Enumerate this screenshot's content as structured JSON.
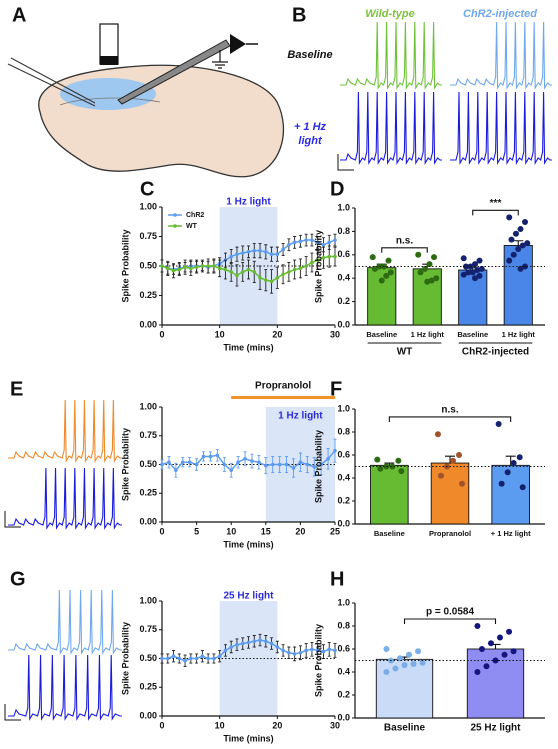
{
  "panel_labels": [
    "A",
    "B",
    "C",
    "D",
    "E",
    "F",
    "G",
    "H"
  ],
  "traces": {
    "wild_type": "Wild-type",
    "chr2": "ChR2-injected",
    "baseline": "Baseline",
    "light_lines": [
      "+ 1 Hz",
      "light"
    ]
  },
  "chart_data": [
    {
      "type": "line",
      "xlabel": "Time (mins)",
      "ylabel": "Spike Probability",
      "xlim": [
        0,
        30
      ],
      "xticks": [
        0,
        10,
        20,
        30
      ],
      "ylim": [
        0,
        1
      ],
      "yticks": [
        {
          "value": 0,
          "label": "0.00"
        },
        {
          "value": 0.25,
          "label": "0.25"
        },
        {
          "value": 0.5,
          "label": "0.50"
        },
        {
          "value": 0.75,
          "label": "0.75"
        },
        {
          "value": 1,
          "label": "1.00"
        }
      ],
      "reference_line": 0.5,
      "legend": "upper-left",
      "shaded": {
        "range": [
          10,
          20
        ],
        "label": "1 Hz light",
        "color": "#dae6f8",
        "label_color": "#2b2bd6"
      },
      "x": [
        0,
        1,
        2,
        3,
        4,
        5,
        6,
        7,
        8,
        9,
        10,
        11,
        12,
        13,
        14,
        15,
        16,
        17,
        18,
        19,
        20,
        21,
        22,
        23,
        24,
        25,
        26,
        27,
        28,
        29,
        30
      ],
      "series": [
        {
          "name": "ChR2",
          "color": "#5b9bf0",
          "error_color": "#222222",
          "values": [
            0.5,
            0.48,
            0.47,
            0.48,
            0.49,
            0.5,
            0.5,
            0.5,
            0.49,
            0.5,
            0.52,
            0.55,
            0.58,
            0.6,
            0.61,
            0.62,
            0.63,
            0.63,
            0.62,
            0.6,
            0.6,
            0.64,
            0.68,
            0.7,
            0.71,
            0.72,
            0.72,
            0.7,
            0.68,
            0.7,
            0.72
          ],
          "errors": [
            0.05,
            0.05,
            0.04,
            0.05,
            0.04,
            0.05,
            0.05,
            0.04,
            0.05,
            0.05,
            0.05,
            0.06,
            0.06,
            0.06,
            0.06,
            0.05,
            0.06,
            0.06,
            0.06,
            0.06,
            0.06,
            0.05,
            0.05,
            0.05,
            0.05,
            0.05,
            0.05,
            0.05,
            0.06,
            0.06,
            0.05
          ]
        },
        {
          "name": "WT",
          "color": "#66bb33",
          "error_color": "#222222",
          "values": [
            0.5,
            0.48,
            0.46,
            0.47,
            0.49,
            0.48,
            0.49,
            0.5,
            0.5,
            0.5,
            0.48,
            0.47,
            0.45,
            0.42,
            0.45,
            0.47,
            0.45,
            0.4,
            0.38,
            0.37,
            0.4,
            0.43,
            0.45,
            0.47,
            0.48,
            0.5,
            0.53,
            0.55,
            0.57,
            0.58,
            0.58
          ],
          "errors": [
            0.05,
            0.06,
            0.06,
            0.05,
            0.06,
            0.06,
            0.05,
            0.05,
            0.06,
            0.06,
            0.07,
            0.08,
            0.08,
            0.09,
            0.08,
            0.08,
            0.09,
            0.1,
            0.09,
            0.1,
            0.09,
            0.08,
            0.08,
            0.08,
            0.08,
            0.08,
            0.08,
            0.08,
            0.09,
            0.09,
            0.08
          ]
        }
      ]
    },
    {
      "type": "bar",
      "ylabel": "Spike Probability",
      "ylim": [
        0,
        1
      ],
      "yticks": [
        {
          "value": 0,
          "label": "0.0"
        },
        0.2,
        0.4,
        0.6,
        0.8,
        {
          "value": 1,
          "label": "1.0"
        }
      ],
      "reference_line": 0.5,
      "categories": [
        "Baseline",
        "1 Hz light",
        "Baseline",
        "1 Hz light"
      ],
      "groups": [
        "WT",
        "ChR2-injected"
      ],
      "values": [
        0.49,
        0.48,
        0.47,
        0.68
      ],
      "errors": [
        0.03,
        0.04,
        0.02,
        0.04
      ],
      "colors": [
        "#66bb33",
        "#66bb33",
        "#4a86e8",
        "#4a86e8"
      ],
      "point_colors": [
        "#2d6a12",
        "#2d6a12",
        "#14226e",
        "#14226e"
      ],
      "points": [
        [
          0.58,
          0.55,
          0.5,
          0.5,
          0.48,
          0.45,
          0.42,
          0.38
        ],
        [
          0.6,
          0.58,
          0.52,
          0.48,
          0.45,
          0.4,
          0.38,
          0.37
        ],
        [
          0.57,
          0.55,
          0.52,
          0.5,
          0.5,
          0.48,
          0.47,
          0.45,
          0.45,
          0.43,
          0.42,
          0.4
        ],
        [
          0.92,
          0.88,
          0.82,
          0.78,
          0.73,
          0.7,
          0.68,
          0.65,
          0.6,
          0.55,
          0.5,
          0.48
        ]
      ],
      "significance": [
        {
          "label": "n.s.",
          "between": [
            0,
            1
          ]
        },
        {
          "label": "***",
          "between": [
            2,
            3
          ]
        }
      ]
    },
    {
      "type": "line",
      "xlabel": "Time (mins)",
      "ylabel": "Spike Probability",
      "xlim": [
        0,
        25
      ],
      "xticks": [
        0,
        5,
        10,
        15,
        20,
        25
      ],
      "ylim": [
        0,
        1
      ],
      "yticks": [
        {
          "value": 0,
          "label": "0.00"
        },
        {
          "value": 0.25,
          "label": "0.25"
        },
        {
          "value": 0.5,
          "label": "0.50"
        },
        {
          "value": 0.75,
          "label": "0.75"
        },
        {
          "value": 1,
          "label": "1.00"
        }
      ],
      "reference_line": 0.5,
      "shaded": {
        "range": [
          15,
          25
        ],
        "label": "1 Hz light",
        "color": "#dae6f8",
        "label_color": "#2b2bd6"
      },
      "bar_annotation": {
        "label": "Propranolol",
        "range": [
          10,
          25
        ],
        "color": "#f0922a"
      },
      "x": [
        0,
        1,
        2,
        3,
        4,
        5,
        6,
        7,
        8,
        9,
        10,
        11,
        12,
        13,
        14,
        15,
        16,
        17,
        18,
        19,
        20,
        21,
        22,
        23,
        24,
        25
      ],
      "series": [
        {
          "name": null,
          "color": "#5b9bf0",
          "error_color": "#5b9bf0",
          "values": [
            0.5,
            0.52,
            0.45,
            0.52,
            0.52,
            0.5,
            0.57,
            0.57,
            0.58,
            0.5,
            0.45,
            0.52,
            0.55,
            0.53,
            0.52,
            0.49,
            0.5,
            0.5,
            0.5,
            0.47,
            0.52,
            0.5,
            0.48,
            0.5,
            0.55,
            0.62
          ],
          "errors": [
            0.04,
            0.05,
            0.06,
            0.04,
            0.04,
            0.05,
            0.04,
            0.04,
            0.05,
            0.06,
            0.06,
            0.05,
            0.06,
            0.06,
            0.06,
            0.07,
            0.07,
            0.07,
            0.07,
            0.08,
            0.08,
            0.07,
            0.08,
            0.09,
            0.09,
            0.1
          ]
        }
      ]
    },
    {
      "type": "bar",
      "ylabel": "Spike Probability",
      "ylim": [
        0,
        1
      ],
      "yticks": [
        {
          "value": 0,
          "label": "0.0"
        },
        0.2,
        0.4,
        0.6,
        0.8,
        {
          "value": 1,
          "label": "1.0"
        }
      ],
      "reference_line": 0.5,
      "categories": [
        "Baseline",
        "Propranolol",
        "+ 1 Hz light"
      ],
      "values": [
        0.51,
        0.53,
        0.51
      ],
      "errors": [
        0.02,
        0.06,
        0.08
      ],
      "colors": [
        "#66bb33",
        "#f0892a",
        "#5b9bf0"
      ],
      "point_colors": [
        "#2d6a12",
        "#a0522d",
        "#14226e"
      ],
      "points": [
        [
          0.56,
          0.55,
          0.5,
          0.5,
          0.48,
          0.46
        ],
        [
          0.78,
          0.6,
          0.55,
          0.5,
          0.42,
          0.35
        ],
        [
          0.87,
          0.58,
          0.53,
          0.45,
          0.35,
          0.32
        ]
      ],
      "significance": [
        {
          "label": "n.s.",
          "between": [
            0,
            2
          ]
        }
      ]
    },
    {
      "type": "line",
      "xlabel": "Time (mins)",
      "ylabel": "Spike Probability",
      "xlim": [
        0,
        30
      ],
      "xticks": [
        0,
        10,
        20,
        30
      ],
      "ylim": [
        0,
        1
      ],
      "yticks": [
        {
          "value": 0,
          "label": "0.00"
        },
        {
          "value": 0.25,
          "label": "0.25"
        },
        {
          "value": 0.5,
          "label": "0.50"
        },
        {
          "value": 0.75,
          "label": "0.75"
        },
        {
          "value": 1,
          "label": "1.00"
        }
      ],
      "reference_line": 0.5,
      "shaded": {
        "range": [
          10,
          20
        ],
        "label": "25 Hz light",
        "color": "#dae6f8",
        "label_color": "#2b2bd6"
      },
      "x": [
        0,
        1,
        2,
        3,
        4,
        5,
        6,
        7,
        8,
        9,
        10,
        11,
        12,
        13,
        14,
        15,
        16,
        17,
        18,
        19,
        20,
        21,
        22,
        23,
        24,
        25,
        26,
        27,
        28,
        29,
        30
      ],
      "series": [
        {
          "name": null,
          "color": "#5b9bf0",
          "error_color": "#222222",
          "values": [
            0.5,
            0.5,
            0.52,
            0.5,
            0.48,
            0.5,
            0.5,
            0.52,
            0.5,
            0.5,
            0.52,
            0.57,
            0.6,
            0.62,
            0.63,
            0.64,
            0.65,
            0.66,
            0.65,
            0.63,
            0.6,
            0.57,
            0.55,
            0.54,
            0.55,
            0.57,
            0.58,
            0.57,
            0.56,
            0.58,
            0.57
          ],
          "errors": [
            0.04,
            0.04,
            0.05,
            0.04,
            0.05,
            0.04,
            0.04,
            0.05,
            0.04,
            0.04,
            0.05,
            0.05,
            0.05,
            0.05,
            0.05,
            0.05,
            0.05,
            0.05,
            0.05,
            0.05,
            0.05,
            0.05,
            0.05,
            0.06,
            0.06,
            0.06,
            0.06,
            0.06,
            0.06,
            0.06,
            0.06
          ]
        }
      ]
    },
    {
      "type": "bar",
      "ylabel": "Spike Probability",
      "ylim": [
        0,
        1
      ],
      "yticks": [
        {
          "value": 0,
          "label": "0.0"
        },
        0.2,
        0.4,
        0.6,
        0.8,
        {
          "value": 1,
          "label": "1.0"
        }
      ],
      "reference_line": 0.5,
      "categories": [
        "Baseline",
        "25 Hz light"
      ],
      "values": [
        0.51,
        0.6
      ],
      "errors": [
        0.02,
        0.04
      ],
      "colors": [
        "#c9dbf7",
        "#8f8cf2"
      ],
      "point_colors": [
        "#7aaee8",
        "#15157e"
      ],
      "points": [
        [
          0.6,
          0.58,
          0.55,
          0.52,
          0.5,
          0.48,
          0.47,
          0.46,
          0.43,
          0.4
        ],
        [
          0.8,
          0.75,
          0.7,
          0.65,
          0.6,
          0.58,
          0.55,
          0.5,
          0.45,
          0.4
        ]
      ],
      "significance": [
        {
          "label": "p = 0.0584",
          "between": [
            0,
            1
          ]
        }
      ]
    }
  ]
}
